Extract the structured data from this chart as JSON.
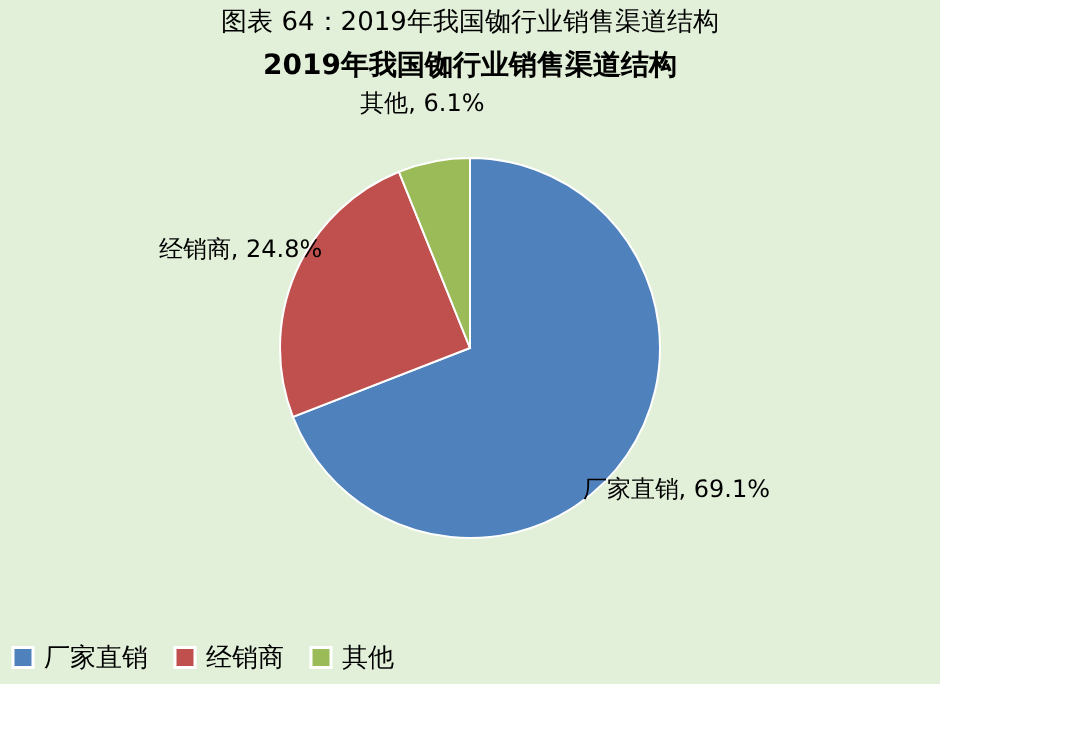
{
  "chart_data": {
    "type": "pie",
    "title": "图表 64：2019年我国铷行业销售渠道结构",
    "subtitle": "2019年我国铷行业销售渠道结构",
    "categories": [
      "厂家直销",
      "经销商",
      "其他"
    ],
    "values": [
      69.1,
      24.8,
      6.1
    ],
    "colors": [
      "#4f81bd",
      "#c0504d",
      "#9bbb59"
    ],
    "value_labels": [
      "厂家直销, 69.1%",
      "经销商, 24.8%",
      "其他, 6.1%"
    ],
    "legend": "bottom"
  }
}
